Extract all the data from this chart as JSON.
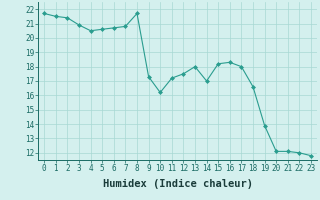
{
  "x": [
    0,
    1,
    2,
    3,
    4,
    5,
    6,
    7,
    8,
    9,
    10,
    11,
    12,
    13,
    14,
    15,
    16,
    17,
    18,
    19,
    20,
    21,
    22,
    23
  ],
  "y": [
    21.7,
    21.5,
    21.4,
    20.9,
    20.5,
    20.6,
    20.7,
    20.8,
    21.7,
    17.3,
    16.2,
    17.2,
    17.5,
    18.0,
    17.0,
    18.2,
    18.3,
    18.0,
    16.6,
    13.9,
    12.1,
    12.1,
    12.0,
    11.8
  ],
  "line_color": "#2a9d8f",
  "marker": "D",
  "marker_size": 2.0,
  "marker_linewidth": 0.5,
  "bg_color": "#d4f0ee",
  "grid_color": "#a8d8d4",
  "xlabel": "Humidex (Indice chaleur)",
  "ylim": [
    11.5,
    22.5
  ],
  "xlim": [
    -0.5,
    23.5
  ],
  "yticks": [
    12,
    13,
    14,
    15,
    16,
    17,
    18,
    19,
    20,
    21,
    22
  ],
  "xticks": [
    0,
    1,
    2,
    3,
    4,
    5,
    6,
    7,
    8,
    9,
    10,
    11,
    12,
    13,
    14,
    15,
    16,
    17,
    18,
    19,
    20,
    21,
    22,
    23
  ],
  "tick_fontsize": 5.5,
  "xlabel_fontsize": 7.5,
  "line_width": 0.8
}
